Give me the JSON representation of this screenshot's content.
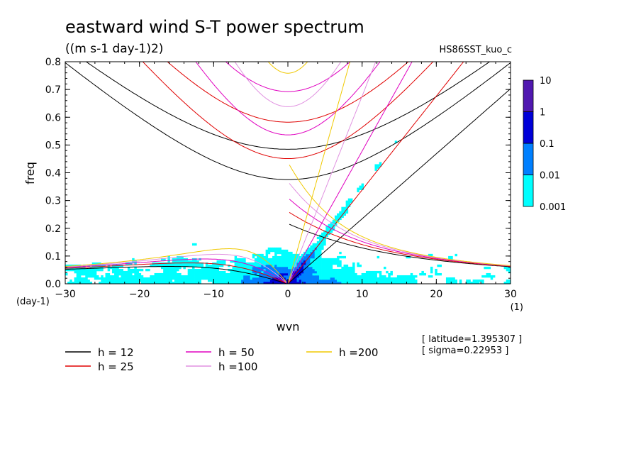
{
  "chart_data": {
    "type": "heatmap",
    "title": "eastward wind S-T power spectrum",
    "subtitle": "((m s-1 day-1)2)",
    "run_label": "HS86SST_kuo_c",
    "xlabel": "wvn",
    "ylabel": "freq",
    "x_unit": "(1)",
    "y_unit": "(day-1)",
    "xlim": [
      -30,
      30
    ],
    "ylim": [
      0,
      0.8
    ],
    "xticks": [
      -30,
      -20,
      -10,
      0,
      10,
      20,
      30
    ],
    "yticks": [
      0.0,
      0.1,
      0.2,
      0.3,
      0.4,
      0.5,
      0.6,
      0.7,
      0.8
    ],
    "colorbar": {
      "levels": [
        "0.001",
        "0.01",
        "0.1",
        "1",
        "10"
      ],
      "colors": [
        "#00ffff",
        "#0080ff",
        "#0000d8",
        "#5018b0"
      ]
    },
    "dispersion_curves": [
      {
        "label": "h = 12",
        "h": 12,
        "color": "#000000"
      },
      {
        "label": "h = 25",
        "h": 25,
        "color": "#e00000"
      },
      {
        "label": "h = 50",
        "h": 50,
        "color": "#e000c0"
      },
      {
        "label": "h =100",
        "h": 100,
        "color": "#e090e0"
      },
      {
        "label": "h =200",
        "h": 200,
        "color": "#f0c800"
      }
    ],
    "annotations": [
      "[ latitude=1.395307 ]",
      "[ sigma=0.22953 ]"
    ]
  }
}
